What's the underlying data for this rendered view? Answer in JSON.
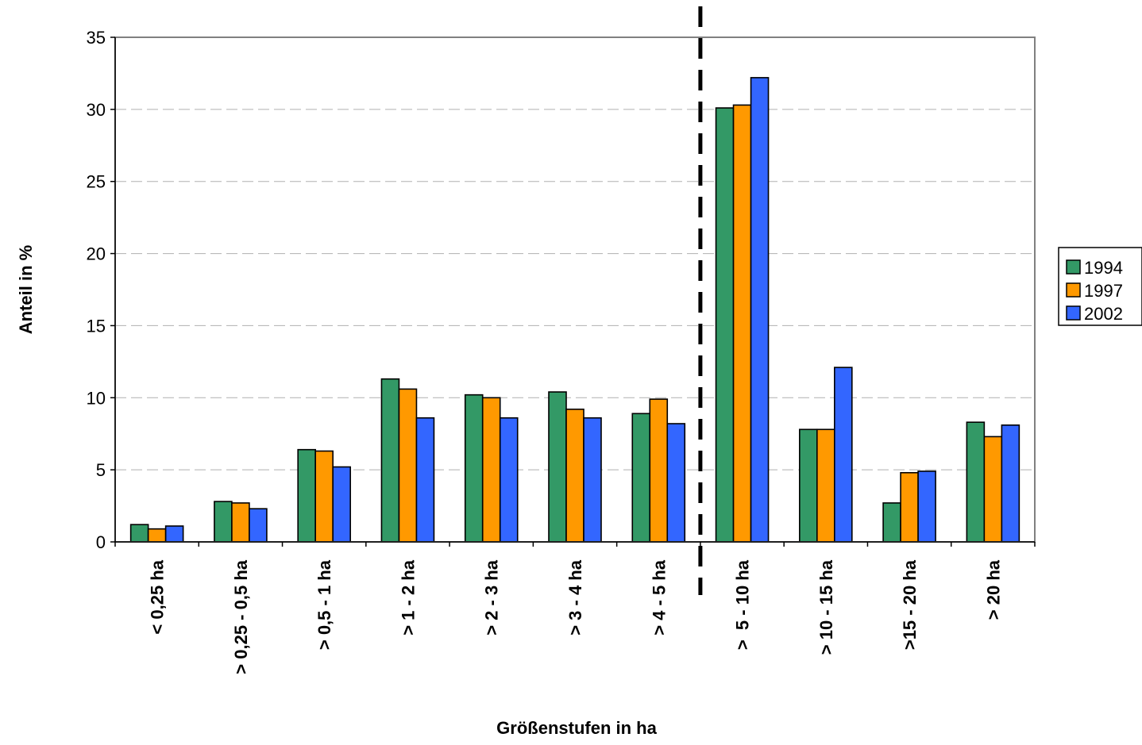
{
  "chart_data": {
    "type": "bar",
    "title": "",
    "xlabel": "Größenstufen in ha",
    "ylabel": "Anteil in %",
    "ylim": [
      0,
      35
    ],
    "yticks": [
      0,
      5,
      10,
      15,
      20,
      25,
      30,
      35
    ],
    "grid": true,
    "legend_position": "right",
    "categories": [
      "< 0,25 ha",
      "> 0,25 - 0,5 ha",
      "> 0,5 - 1 ha",
      "> 1 - 2 ha",
      "> 2 - 3 ha",
      "> 3 - 4 ha",
      "> 4 - 5 ha",
      ">  5 - 10 ha",
      "> 10 - 15 ha",
      ">15 - 20 ha",
      "> 20 ha"
    ],
    "series": [
      {
        "name": "1994",
        "color": "#339966",
        "values": [
          1.2,
          2.8,
          6.4,
          11.3,
          10.2,
          10.4,
          8.9,
          30.1,
          7.8,
          2.7,
          8.3
        ]
      },
      {
        "name": "1997",
        "color": "#ff9900",
        "values": [
          0.9,
          2.7,
          6.3,
          10.6,
          10.0,
          9.2,
          9.9,
          30.3,
          7.8,
          4.8,
          7.3
        ]
      },
      {
        "name": "2002",
        "color": "#3366ff",
        "values": [
          1.1,
          2.3,
          5.2,
          8.6,
          8.6,
          8.6,
          8.2,
          32.2,
          12.1,
          4.9,
          8.1
        ]
      }
    ],
    "divider_after_category": 6
  }
}
